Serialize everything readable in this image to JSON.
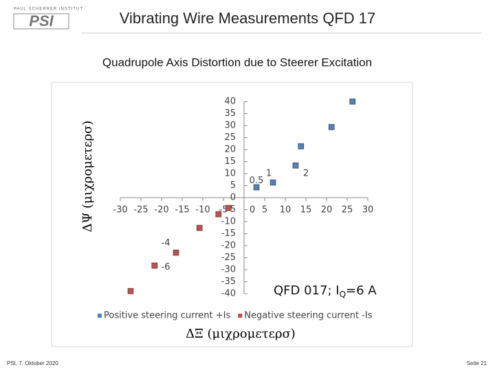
{
  "header": {
    "logo_caption": "PAUL SCHERRER INSTITUT",
    "logo": "PSI",
    "title": "Vibrating Wire Measurements QFD 17"
  },
  "chart_data": {
    "type": "scatter",
    "title": "Quadrupole Axis Distortion due to Steerer Excitation",
    "x_label": "ΔΞ (μιχρομετερσ)",
    "y_label": "ΔΨ (μιχρομετερσ)",
    "series": [
      {
        "name": "Positive steering current +Is",
        "color": "#4f81bd",
        "x": [
          3,
          7,
          12.5,
          13.8,
          21.2,
          26.3
        ],
        "values": [
          4.3,
          6.3,
          13.4,
          21.4,
          29.4,
          40
        ]
      },
      {
        "name": "Negative steering current -Is",
        "color": "#c0504d",
        "x": [
          -3.8,
          -6.2,
          -10.8,
          -16.5,
          -21.7,
          -27.5
        ],
        "values": [
          -4.3,
          -6.9,
          -12.6,
          -22.9,
          -28.3,
          -38.9
        ]
      }
    ],
    "point_labels": [
      {
        "text": "0.5",
        "x": 3,
        "y": 7
      },
      {
        "text": "1",
        "x": 6,
        "y": 10
      },
      {
        "text": "2",
        "x": 15,
        "y": 10
      },
      {
        "text": "-4",
        "x": -19,
        "y": -19
      },
      {
        "text": "-6",
        "x": -19,
        "y": -29
      }
    ],
    "annotation": [
      "QFD 017; I",
      "Q",
      "=6 A"
    ],
    "xlim": [
      -30,
      30
    ],
    "ylim": [
      -40,
      40
    ],
    "xticks": [
      -30,
      -25,
      -20,
      -15,
      -10,
      -5,
      0,
      5,
      10,
      15,
      20,
      25,
      30
    ],
    "yticks": [
      40,
      35,
      30,
      25,
      20,
      15,
      10,
      5,
      0,
      -5,
      -10,
      -15,
      -20,
      -25,
      -30,
      -35,
      -40
    ],
    "legend": "bottom"
  },
  "footer": {
    "left": "PSI, 7. Oktober 2020",
    "right": "Seite 21"
  }
}
